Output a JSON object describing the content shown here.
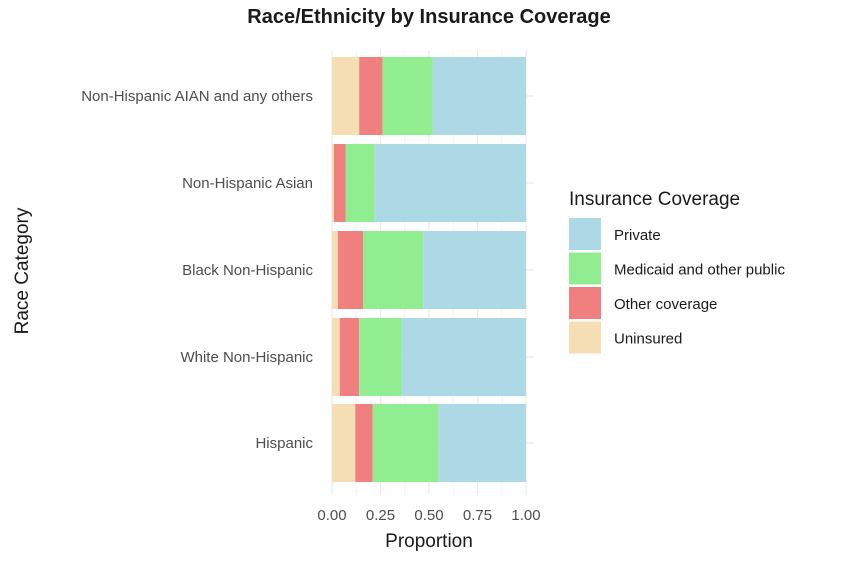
{
  "chart_data": {
    "type": "bar",
    "orientation": "horizontal",
    "stacked": true,
    "title": "Race/Ethnicity by Insurance Coverage",
    "xlabel": "Proportion",
    "ylabel": "Race Category",
    "xlim": [
      0,
      1
    ],
    "xticks": [
      "0.00",
      "0.25",
      "0.50",
      "0.75",
      "1.00"
    ],
    "grid": true,
    "legend_position": "right",
    "legend_title": "Insurance Coverage",
    "categories": [
      "Non-Hispanic AIAN and any others",
      "Non-Hispanic Asian",
      "Black Non-Hispanic",
      "White Non-Hispanic",
      "Hispanic"
    ],
    "series": [
      {
        "name": "Uninsured",
        "color": "#f5deb3",
        "values": [
          0.14,
          0.01,
          0.03,
          0.04,
          0.12
        ]
      },
      {
        "name": "Other coverage",
        "color": "#f08080",
        "values": [
          0.12,
          0.06,
          0.13,
          0.1,
          0.09
        ]
      },
      {
        "name": "Medicaid and other public",
        "color": "#90ee90",
        "values": [
          0.26,
          0.15,
          0.31,
          0.22,
          0.34
        ]
      },
      {
        "name": "Private",
        "color": "#add8e6",
        "values": [
          0.48,
          0.78,
          0.53,
          0.64,
          0.45
        ]
      }
    ],
    "legend_order": [
      "Private",
      "Medicaid and other public",
      "Other coverage",
      "Uninsured"
    ]
  }
}
